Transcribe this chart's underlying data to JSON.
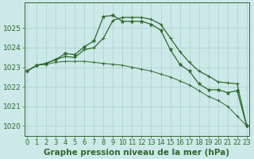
{
  "xlabel": "Graphe pression niveau de la mer (hPa)",
  "x": [
    0,
    1,
    2,
    3,
    4,
    5,
    6,
    7,
    8,
    9,
    10,
    11,
    12,
    13,
    14,
    15,
    16,
    17,
    18,
    19,
    20,
    21,
    22,
    23
  ],
  "line1": [
    1022.8,
    1023.1,
    1023.2,
    1023.4,
    1023.7,
    1023.65,
    1024.05,
    1024.35,
    1025.6,
    1025.65,
    1025.35,
    1025.35,
    1025.35,
    1025.2,
    1024.9,
    1023.9,
    1023.15,
    1022.8,
    1022.15,
    1021.85,
    1021.85,
    1021.7,
    1021.8,
    1020.0
  ],
  "line2": [
    1022.8,
    1023.1,
    1023.2,
    1023.4,
    1023.55,
    1023.5,
    1023.9,
    1024.0,
    1024.5,
    1025.4,
    1025.55,
    1025.55,
    1025.55,
    1025.45,
    1025.2,
    1024.5,
    1023.8,
    1023.25,
    1022.8,
    1022.55,
    1022.25,
    1022.2,
    1022.15,
    1020.0
  ],
  "line3": [
    1022.8,
    1023.1,
    1023.15,
    1023.25,
    1023.3,
    1023.3,
    1023.3,
    1023.25,
    1023.2,
    1023.15,
    1023.1,
    1023.0,
    1022.9,
    1022.8,
    1022.65,
    1022.5,
    1022.3,
    1022.1,
    1021.8,
    1021.5,
    1021.3,
    1021.0,
    1020.5,
    1020.0
  ],
  "line_color": "#2d6a2d",
  "bg_color": "#cde8e8",
  "grid_color": "#a8d0d0",
  "ylim": [
    1019.5,
    1026.3
  ],
  "yticks": [
    1020,
    1021,
    1022,
    1023,
    1024,
    1025
  ],
  "xlabel_fontsize": 7.5,
  "tick_fontsize": 6.5
}
